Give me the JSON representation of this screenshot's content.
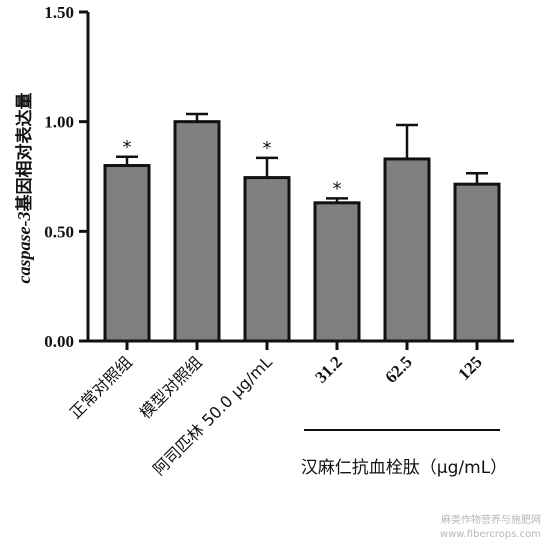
{
  "chart_data": {
    "type": "bar",
    "ylabel_italic": "caspase-3",
    "ylabel_rest": "基因相对表达量",
    "ylim": [
      0,
      1.5
    ],
    "yticks": [
      "0.00",
      "0.50",
      "1.00",
      "1.50"
    ],
    "categories": [
      "正常对照组",
      "模型对照组",
      "阿司匹林 50.0 μg/mL",
      "31.2",
      "62.5",
      "125"
    ],
    "values": [
      0.8,
      1.0,
      0.745,
      0.63,
      0.83,
      0.715
    ],
    "errors": [
      0.04,
      0.035,
      0.09,
      0.02,
      0.155,
      0.05
    ],
    "significance": [
      "*",
      "",
      "*",
      "*",
      "",
      ""
    ],
    "group_label": "汉麻仁抗血栓肽（μg/mL）",
    "bar_color": "#808080"
  },
  "watermark": {
    "line1": "麻类作物营养与施肥网",
    "line2": "www.fibercrops.com"
  }
}
